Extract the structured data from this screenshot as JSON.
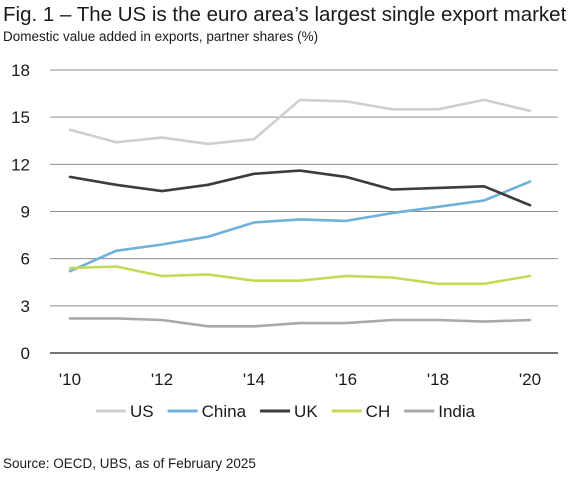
{
  "title": "Fig. 1 – The US is the euro area’s largest single export market",
  "subtitle": "Domestic value added in exports, partner shares (%)",
  "source": "Source: OECD, UBS, as of February 2025",
  "chart_data": {
    "type": "line",
    "title": "Fig. 1 – The US is the euro area’s largest single export market",
    "subtitle": "Domestic value added in exports, partner shares (%)",
    "xlabel": "",
    "ylabel": "",
    "x": [
      2010,
      2011,
      2012,
      2013,
      2014,
      2015,
      2016,
      2017,
      2018,
      2019,
      2020
    ],
    "xlim": [
      2010,
      2020
    ],
    "ylim": [
      0,
      18
    ],
    "yticks": [
      0,
      3,
      6,
      9,
      12,
      15,
      18
    ],
    "ytick_labels": [
      "0",
      "3",
      "6",
      "9",
      "12",
      "15",
      "18"
    ],
    "xticks": [
      2010,
      2012,
      2014,
      2016,
      2018,
      2020
    ],
    "xtick_labels": [
      "'10",
      "'12",
      "'14",
      "'16",
      "'18",
      "'20"
    ],
    "grid": "horizontal",
    "legend_position": "bottom",
    "series": [
      {
        "name": "US",
        "color": "#cfcfcf",
        "values": [
          14.2,
          13.4,
          13.7,
          13.3,
          13.6,
          16.1,
          16.0,
          15.5,
          15.5,
          16.1,
          15.4
        ]
      },
      {
        "name": "China",
        "color": "#6fb1da",
        "values": [
          5.2,
          6.5,
          6.9,
          7.4,
          8.3,
          8.5,
          8.4,
          8.9,
          9.3,
          9.7,
          10.9
        ]
      },
      {
        "name": "UK",
        "color": "#3c3c3c",
        "values": [
          11.2,
          10.7,
          10.3,
          10.7,
          11.4,
          11.6,
          11.2,
          10.4,
          10.5,
          10.6,
          9.4
        ]
      },
      {
        "name": "CH",
        "color": "#c8d756",
        "values": [
          5.4,
          5.5,
          4.9,
          5.0,
          4.6,
          4.6,
          4.9,
          4.8,
          4.4,
          4.4,
          4.9
        ]
      },
      {
        "name": "India",
        "color": "#a9a9a9",
        "values": [
          2.2,
          2.2,
          2.1,
          1.7,
          1.7,
          1.9,
          1.9,
          2.1,
          2.1,
          2.0,
          2.1
        ]
      }
    ]
  }
}
